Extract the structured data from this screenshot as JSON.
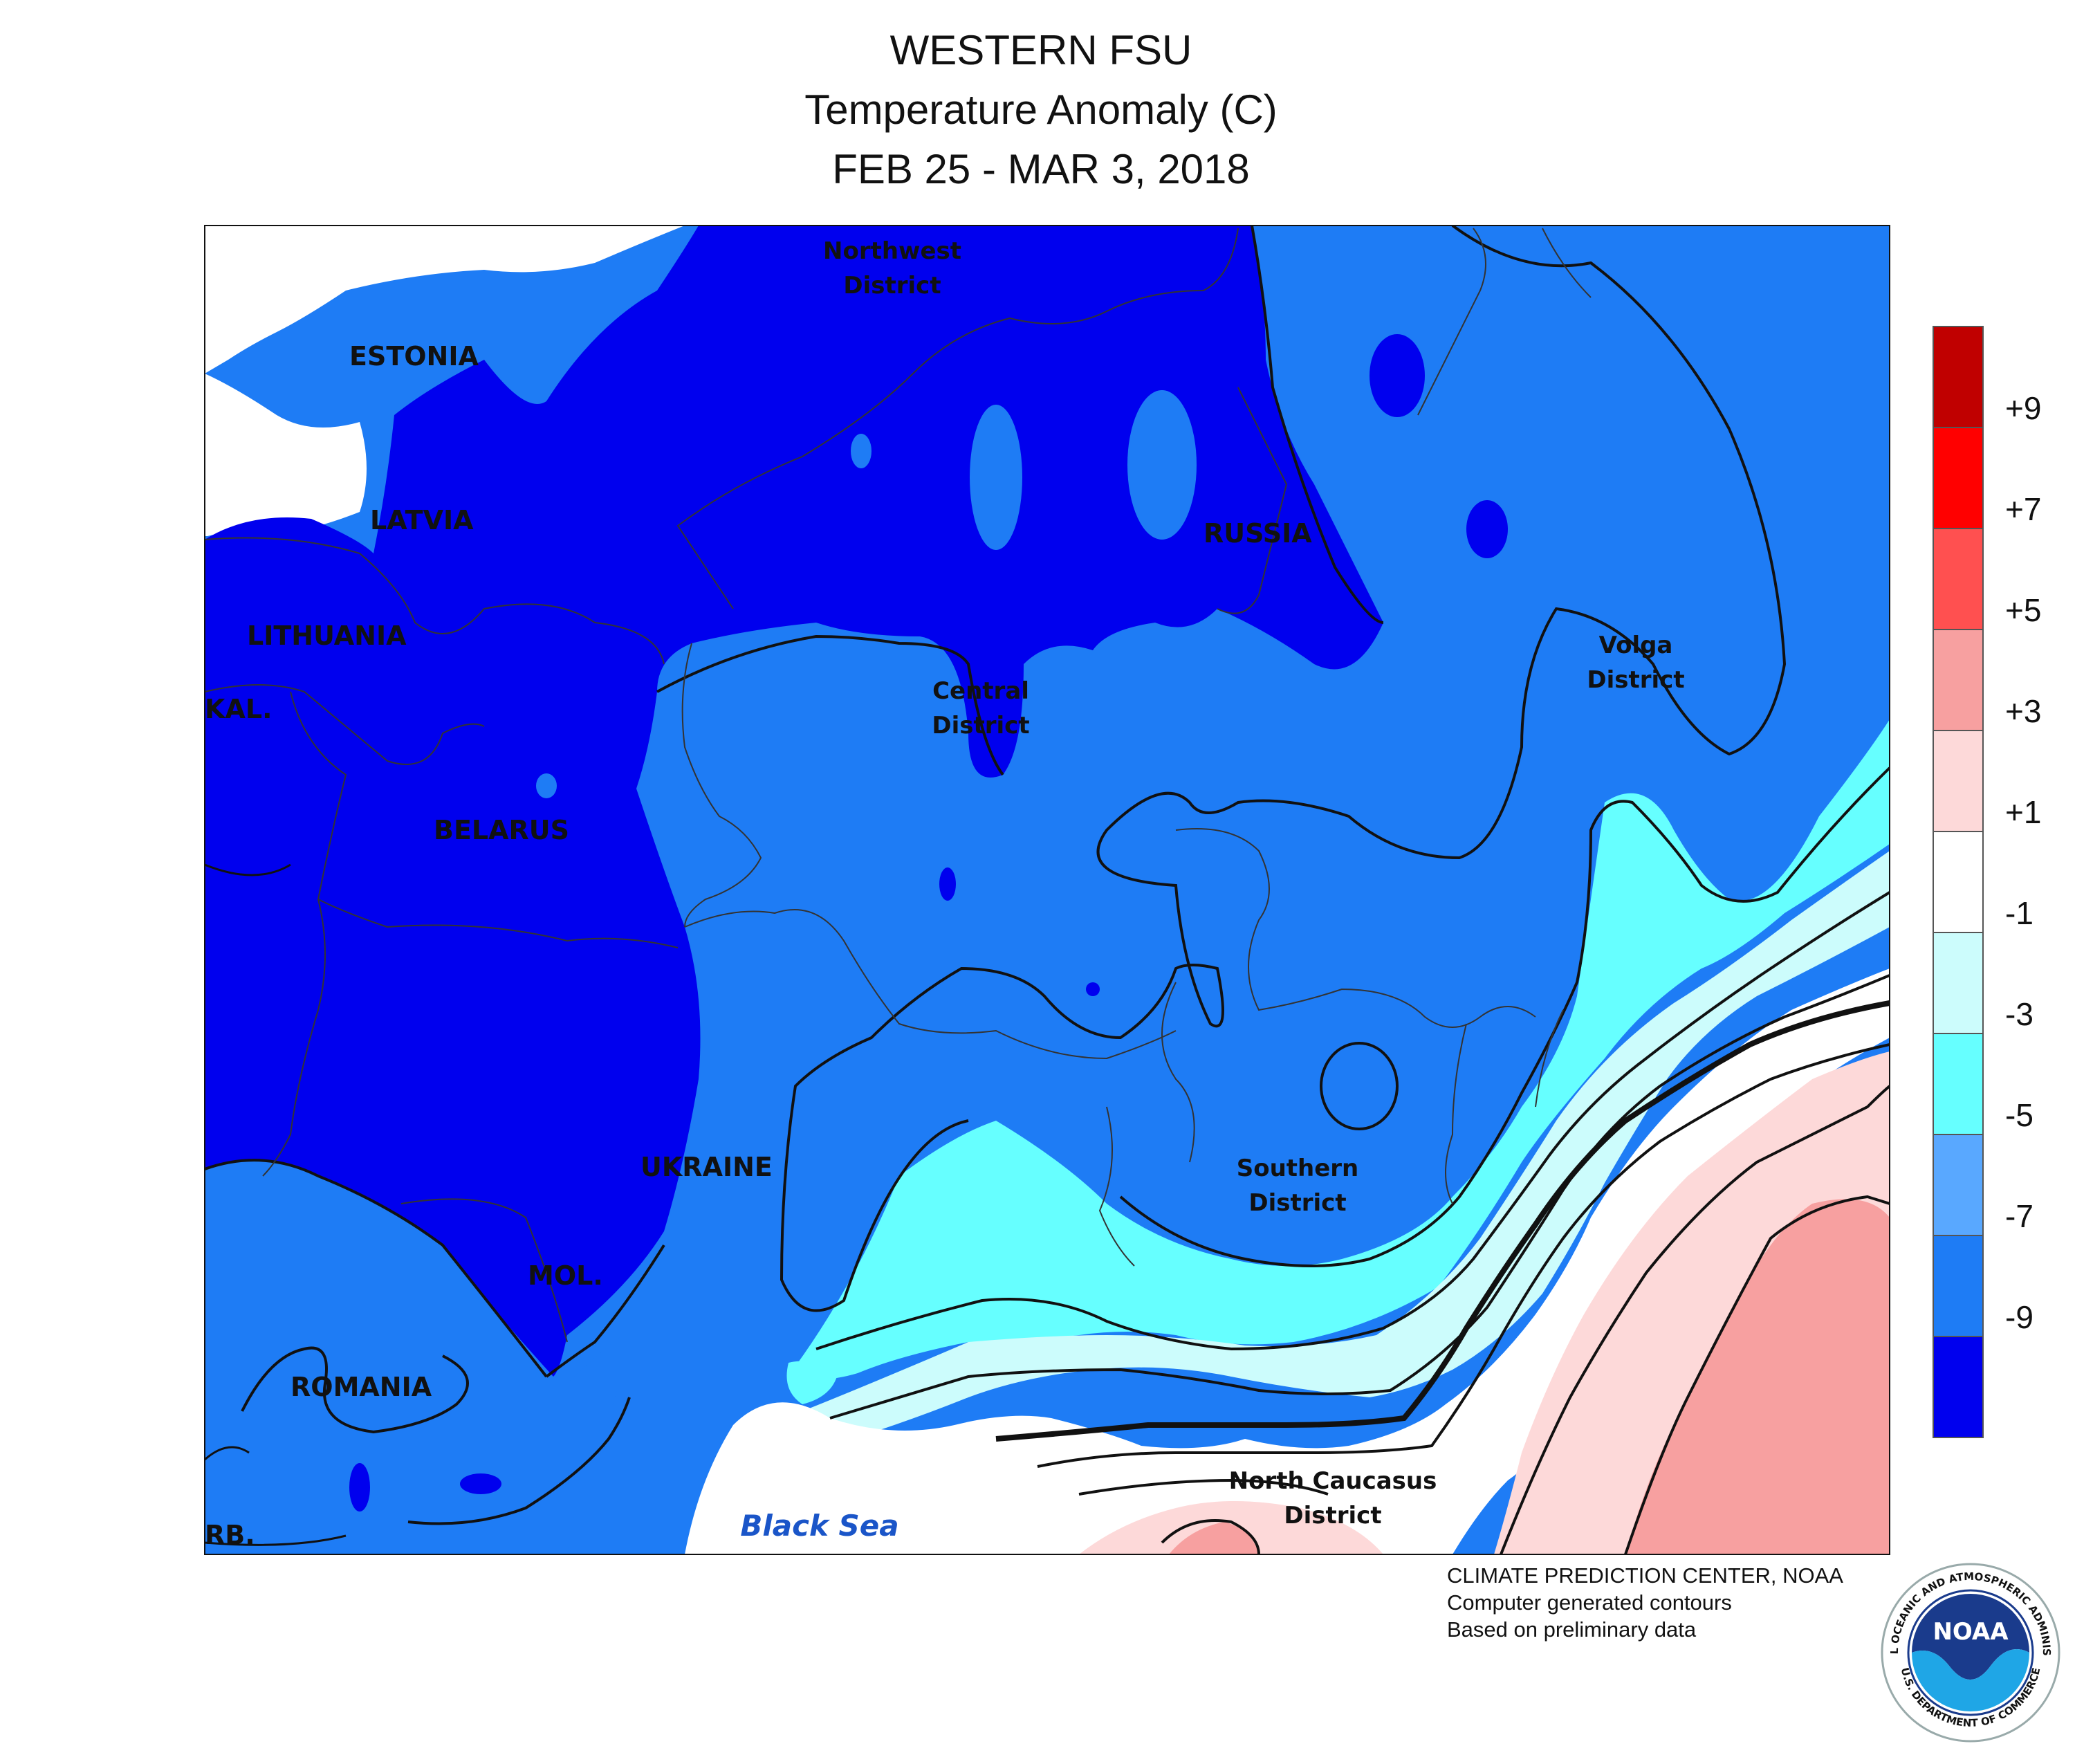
{
  "title": {
    "line1": "WESTERN FSU",
    "line2": "Temperature Anomaly (C)",
    "line3": "FEB 25 - MAR 3, 2018"
  },
  "legend": {
    "ticks": [
      "+9",
      "+7",
      "+5",
      "+3",
      "+1",
      "-1",
      "-3",
      "-5",
      "-7",
      "-9"
    ],
    "colors": [
      "#c00000",
      "#ff0000",
      "#ff5050",
      "#f7a0a0",
      "#fdd9d9",
      "#ffffff",
      "#ccfcfc",
      "#66ffff",
      "#59a8ff",
      "#1e7cf5",
      "#0000ee"
    ]
  },
  "regions": {
    "estonia": "ESTONIA",
    "latvia": "LATVIA",
    "lithuania": "LITHUANIA",
    "kaliningrad": "KAL.",
    "belarus": "BELARUS",
    "russia": "RUSSIA",
    "ukraine": "UKRAINE",
    "moldova": "MOL.",
    "romania": "ROMANIA",
    "serbia": "RB."
  },
  "districts": {
    "northwest": [
      "Northwest",
      "District"
    ],
    "central": [
      "Central",
      "District"
    ],
    "volga": [
      "Volga",
      "District"
    ],
    "southern": [
      "Southern",
      "District"
    ],
    "north_caucasus": [
      "North Caucasus",
      "District"
    ]
  },
  "water": {
    "black_sea": "Black Sea"
  },
  "credits": {
    "line1": "CLIMATE PREDICTION CENTER, NOAA",
    "line2": "Computer generated contours",
    "line3": "Based on preliminary data"
  },
  "logo": {
    "text": "NOAA",
    "ring_top": "NATIONAL OCEANIC AND ATMOSPHERIC ADMINISTRATION",
    "ring_bottom": "U.S. DEPARTMENT OF COMMERCE"
  }
}
